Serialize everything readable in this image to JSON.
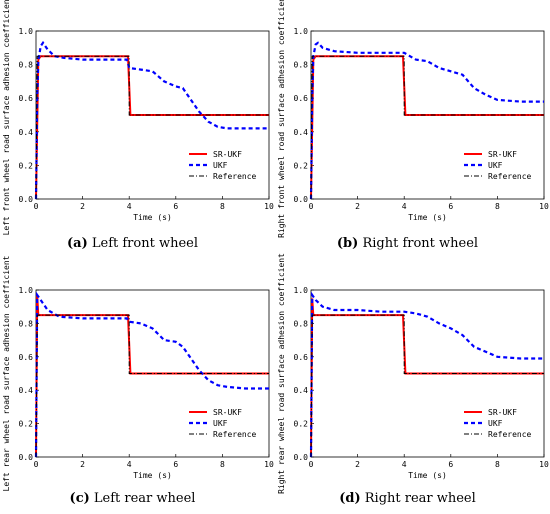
{
  "chart_data": [
    {
      "type": "line",
      "caption_label": "(a)",
      "caption_text": " Left front wheel",
      "xlabel": "Time (s)",
      "ylabel": "Left front wheel road surface adhesion coefficient",
      "xlim": [
        0,
        10
      ],
      "ylim": [
        0,
        1.0
      ],
      "xticks": [
        "0",
        "2",
        "4",
        "6",
        "8",
        "10"
      ],
      "yticks": [
        "0.0",
        "0.2",
        "0.4",
        "0.6",
        "0.8",
        "1.0"
      ],
      "legend_position": "bottom-right",
      "series": [
        {
          "name": "SR-UKF",
          "color": "#ff0000",
          "style": "solid",
          "x": [
            0,
            0.1,
            0.2,
            3.95,
            4.05,
            10
          ],
          "y": [
            0,
            0.83,
            0.85,
            0.85,
            0.5,
            0.5
          ]
        },
        {
          "name": "UKF",
          "color": "#0000ff",
          "style": "dashed",
          "x": [
            0,
            0.05,
            0.1,
            0.2,
            0.3,
            0.5,
            0.8,
            1.2,
            2.0,
            3.0,
            3.9,
            4.0,
            4.5,
            5.0,
            5.5,
            6.0,
            6.3,
            6.6,
            7.0,
            7.4,
            7.8,
            8.2,
            9.0,
            10
          ],
          "y": [
            0,
            0.6,
            0.82,
            0.91,
            0.93,
            0.89,
            0.85,
            0.84,
            0.83,
            0.83,
            0.83,
            0.78,
            0.77,
            0.76,
            0.7,
            0.67,
            0.66,
            0.6,
            0.52,
            0.46,
            0.43,
            0.42,
            0.42,
            0.42
          ]
        },
        {
          "name": "Reference",
          "color": "#000000",
          "style": "dashdot",
          "x": [
            0,
            0.05,
            0.1,
            4.0,
            4.0,
            10
          ],
          "y": [
            0,
            0.85,
            0.85,
            0.85,
            0.5,
            0.5
          ]
        }
      ]
    },
    {
      "type": "line",
      "caption_label": "(b)",
      "caption_text": " Right front wheel",
      "xlabel": "Time (s)",
      "ylabel": "Right front wheel road surface adhesion coefficient",
      "xlim": [
        0,
        10
      ],
      "ylim": [
        0,
        1.0
      ],
      "xticks": [
        "0",
        "2",
        "4",
        "6",
        "8",
        "10"
      ],
      "yticks": [
        "0.0",
        "0.2",
        "0.4",
        "0.6",
        "0.8",
        "1.0"
      ],
      "legend_position": "bottom-right",
      "series": [
        {
          "name": "SR-UKF",
          "color": "#ff0000",
          "style": "solid",
          "x": [
            0,
            0.1,
            0.2,
            3.95,
            4.05,
            10
          ],
          "y": [
            0,
            0.83,
            0.85,
            0.85,
            0.5,
            0.5
          ]
        },
        {
          "name": "UKF",
          "color": "#0000ff",
          "style": "dashed",
          "x": [
            0,
            0.05,
            0.1,
            0.2,
            0.3,
            0.5,
            1.0,
            2.0,
            3.0,
            4.0,
            4.5,
            5.0,
            5.5,
            6.0,
            6.5,
            7.0,
            7.5,
            8.0,
            9.0,
            10
          ],
          "y": [
            0,
            0.6,
            0.85,
            0.92,
            0.93,
            0.9,
            0.88,
            0.87,
            0.87,
            0.87,
            0.83,
            0.82,
            0.78,
            0.76,
            0.74,
            0.66,
            0.62,
            0.59,
            0.58,
            0.58
          ]
        },
        {
          "name": "Reference",
          "color": "#000000",
          "style": "dashdot",
          "x": [
            0,
            0.05,
            0.1,
            4.0,
            4.0,
            10
          ],
          "y": [
            0,
            0.85,
            0.85,
            0.85,
            0.5,
            0.5
          ]
        }
      ]
    },
    {
      "type": "line",
      "caption_label": "(c)",
      "caption_text": " Left rear wheel",
      "xlabel": "Time (s)",
      "ylabel": "Left rear wheel road surface adhesion coefficient",
      "xlim": [
        0,
        10
      ],
      "ylim": [
        0,
        1.0
      ],
      "xticks": [
        "0",
        "2",
        "4",
        "6",
        "8",
        "10"
      ],
      "yticks": [
        "0.0",
        "0.2",
        "0.4",
        "0.6",
        "0.8",
        "1.0"
      ],
      "legend_position": "bottom-right",
      "series": [
        {
          "name": "SR-UKF",
          "color": "#ff0000",
          "style": "solid",
          "x": [
            0,
            0.05,
            0.1,
            3.95,
            4.05,
            10
          ],
          "y": [
            0,
            0.97,
            0.85,
            0.85,
            0.5,
            0.5
          ]
        },
        {
          "name": "UKF",
          "color": "#0000ff",
          "style": "dashed",
          "x": [
            0,
            0.05,
            0.2,
            0.5,
            1.0,
            2.0,
            3.0,
            3.9,
            4.0,
            4.5,
            5.0,
            5.5,
            6.0,
            6.3,
            6.6,
            7.0,
            7.4,
            7.8,
            8.2,
            9.0,
            10
          ],
          "y": [
            0,
            0.97,
            0.94,
            0.88,
            0.84,
            0.83,
            0.83,
            0.83,
            0.81,
            0.8,
            0.77,
            0.7,
            0.69,
            0.66,
            0.6,
            0.52,
            0.46,
            0.43,
            0.42,
            0.41,
            0.41
          ]
        },
        {
          "name": "Reference",
          "color": "#000000",
          "style": "dashdot",
          "x": [
            0,
            0.05,
            0.1,
            4.0,
            4.0,
            10
          ],
          "y": [
            0,
            0.85,
            0.85,
            0.85,
            0.5,
            0.5
          ]
        }
      ]
    },
    {
      "type": "line",
      "caption_label": "(d)",
      "caption_text": " Right rear wheel",
      "xlabel": "Time (s)",
      "ylabel": "Right rear wheel road surface adhesion coefficient",
      "xlim": [
        0,
        10
      ],
      "ylim": [
        0,
        1.0
      ],
      "xticks": [
        "0",
        "2",
        "4",
        "6",
        "8",
        "10"
      ],
      "yticks": [
        "0.0",
        "0.2",
        "0.4",
        "0.6",
        "0.8",
        "1.0"
      ],
      "legend_position": "bottom-right",
      "series": [
        {
          "name": "SR-UKF",
          "color": "#ff0000",
          "style": "solid",
          "x": [
            0,
            0.05,
            0.1,
            3.95,
            4.05,
            10
          ],
          "y": [
            0,
            0.95,
            0.85,
            0.85,
            0.5,
            0.5
          ]
        },
        {
          "name": "UKF",
          "color": "#0000ff",
          "style": "dashed",
          "x": [
            0,
            0.05,
            0.2,
            0.5,
            1.0,
            2.0,
            3.0,
            4.0,
            4.5,
            5.0,
            5.5,
            6.0,
            6.5,
            7.0,
            7.5,
            8.0,
            9.0,
            10
          ],
          "y": [
            0,
            0.97,
            0.94,
            0.9,
            0.88,
            0.88,
            0.87,
            0.87,
            0.86,
            0.84,
            0.8,
            0.77,
            0.73,
            0.66,
            0.63,
            0.6,
            0.59,
            0.59
          ]
        },
        {
          "name": "Reference",
          "color": "#000000",
          "style": "dashdot",
          "x": [
            0,
            0.05,
            0.1,
            4.0,
            4.0,
            10
          ],
          "y": [
            0,
            0.85,
            0.85,
            0.85,
            0.5,
            0.5
          ]
        }
      ]
    }
  ]
}
